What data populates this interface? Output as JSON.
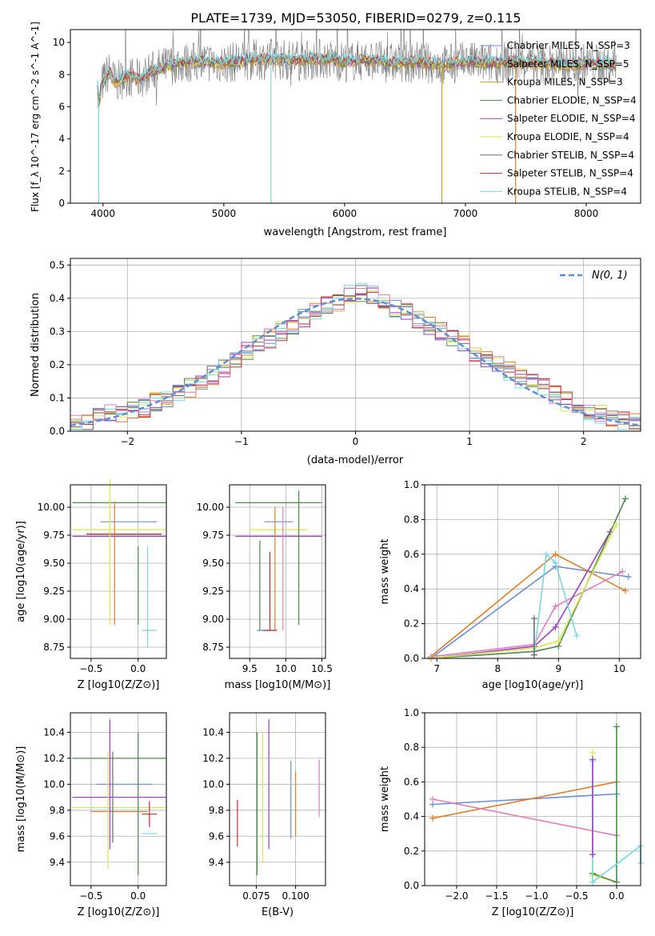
{
  "title": "PLATE=1739, MJD=53050, FIBERID=0279, z=0.115",
  "colors": {
    "CM": "#6b8ed6",
    "SM": "#e07d27",
    "KM": "#c9a31a",
    "CE": "#4d8a4d",
    "SE": "#9b3fc9",
    "KE": "#d9e64d",
    "CS": "#6e6e6e",
    "SS": "#c62b2b",
    "KS": "#7ad7e0",
    "pink": "#e07fb7",
    "teal": "#2a9b8c"
  },
  "spectrum": {
    "xlabel": "wavelength [Angstrom, rest frame]",
    "ylabel": "Flux [f_λ 10^-17 erg cm^-2 s^-1 A^-1]",
    "xticks": [
      "4000",
      "5000",
      "6000",
      "7000",
      "8000"
    ],
    "yticks": [
      "0",
      "2",
      "4",
      "6",
      "8",
      "10"
    ],
    "legend": [
      "Chabrier MILES, N_SSP=3",
      "Salpeter MILES, N_SSP=5",
      "Kroupa MILES, N_SSP=3",
      "Chabrier ELODIE, N_SSP=4",
      "Salpeter ELODIE, N_SSP=4",
      "Kroupa ELODIE, N_SSP=4",
      "Chabrier STELIB, N_SSP=4",
      "Salpeter STELIB, N_SSP=4",
      "Kroupa STELIB, N_SSP=4"
    ]
  },
  "residuals": {
    "xlabel": "(data-model)/error",
    "ylabel": "Normed distribution",
    "legend": "N(0, 1)",
    "xticks": [
      "−2",
      "−1",
      "0",
      "1",
      "2"
    ],
    "yticks": [
      "0.0",
      "0.1",
      "0.2",
      "0.3",
      "0.4",
      "0.5"
    ]
  },
  "panels": {
    "z_age": {
      "xlabel": "Z [log10(Z/Z⊙)]",
      "ylabel": "age  [log10(age/yr)]",
      "xticks": [
        "−0.5",
        "0.0"
      ],
      "yticks": [
        "8.75",
        "9.00",
        "9.25",
        "9.50",
        "9.75",
        "10.00"
      ]
    },
    "mass_age": {
      "xlabel": "mass [log10(M/M⊙)]",
      "xticks": [
        "9.5",
        "10.0",
        "10.5"
      ],
      "yticks": [
        "8.75",
        "9.00",
        "9.25",
        "9.50",
        "9.75",
        "10.00"
      ]
    },
    "age_weight": {
      "xlabel": "age  [log10(age/yr)]",
      "ylabel": "mass weight",
      "xticks": [
        "7",
        "8",
        "9",
        "10"
      ],
      "yticks": [
        "0.0",
        "0.2",
        "0.4",
        "0.6",
        "0.8",
        "1.0"
      ]
    },
    "z_mass": {
      "xlabel": "Z [log10(Z/Z⊙)]",
      "ylabel": "mass [log10(M/M⊙)]",
      "xticks": [
        "−0.5",
        "0.0"
      ],
      "yticks": [
        "9.4",
        "9.6",
        "9.8",
        "10.0",
        "10.2",
        "10.4"
      ]
    },
    "ebv_mass": {
      "xlabel": "E(B-V)",
      "xticks": [
        "0.075",
        "0.100"
      ],
      "yticks": [
        "9.4",
        "9.6",
        "9.8",
        "10.0",
        "10.2",
        "10.4"
      ]
    },
    "z_weight": {
      "xlabel": "Z [log10(Z/Z⊙)]",
      "ylabel": "mass weight",
      "xticks": [
        "−2.0",
        "−1.5",
        "−1.0",
        "−0.5",
        "0.0"
      ],
      "yticks": [
        "0.0",
        "0.2",
        "0.4",
        "0.6",
        "0.8",
        "1.0"
      ]
    }
  },
  "chart_data": [
    {
      "type": "line",
      "title": "PLATE=1739, MJD=53050, FIBERID=0279, z=0.115",
      "xlabel": "wavelength [Angstrom, rest frame]",
      "ylabel": "Flux [f_λ 10^-17 erg cm^-2 s^-1 A^-1]",
      "xlim": [
        3730,
        8450
      ],
      "ylim": [
        0,
        10.8
      ],
      "continuum_x": [
        3950,
        3970,
        3990,
        4050,
        4100,
        4200,
        4300,
        4400,
        4600,
        4800,
        5000,
        5200,
        5400,
        5600,
        5800,
        6000,
        6200,
        6400,
        6600,
        6800,
        7000,
        7200,
        7400,
        7600,
        7800,
        8000,
        8250
      ],
      "continuum_y": [
        7.6,
        6.0,
        7.4,
        8.2,
        7.5,
        7.9,
        7.7,
        8.2,
        8.7,
        8.8,
        8.7,
        8.9,
        9.0,
        8.9,
        9.0,
        8.8,
        8.9,
        8.7,
        8.8,
        8.6,
        8.8,
        8.7,
        8.8,
        8.7,
        8.6,
        8.7,
        8.6
      ],
      "series": [
        {
          "name": "Chabrier MILES, N_SSP=3"
        },
        {
          "name": "Salpeter MILES, N_SSP=5"
        },
        {
          "name": "Kroupa MILES, N_SSP=3"
        },
        {
          "name": "Chabrier ELODIE, N_SSP=4"
        },
        {
          "name": "Salpeter ELODIE, N_SSP=4"
        },
        {
          "name": "Kroupa ELODIE, N_SSP=4"
        },
        {
          "name": "Chabrier STELIB, N_SSP=4"
        },
        {
          "name": "Salpeter STELIB, N_SSP=4"
        },
        {
          "name": "Kroupa STELIB, N_SSP=4"
        }
      ]
    },
    {
      "type": "line",
      "xlabel": "(data-model)/error",
      "ylabel": "Normed distribution",
      "xlim": [
        -2.5,
        2.5
      ],
      "ylim": [
        0,
        0.52
      ],
      "bin_edges": [
        -2.5,
        -2.4,
        -2.3,
        -2.2,
        -2.1,
        -2.0,
        -1.9,
        -1.8,
        -1.7,
        -1.6,
        -1.5,
        -1.4,
        -1.3,
        -1.2,
        -1.1,
        -1.0,
        -0.9,
        -0.8,
        -0.7,
        -0.6,
        -0.5,
        -0.4,
        -0.3,
        -0.2,
        -0.1,
        0.0,
        0.1,
        0.2,
        0.3,
        0.4,
        0.5,
        0.6,
        0.7,
        0.8,
        0.9,
        1.0,
        1.1,
        1.2,
        1.3,
        1.4,
        1.5,
        1.6,
        1.7,
        1.8,
        1.9,
        2.0,
        2.1,
        2.2,
        2.3,
        2.4,
        2.5
      ],
      "hist": [
        0.02,
        0.03,
        0.04,
        0.05,
        0.05,
        0.06,
        0.07,
        0.09,
        0.1,
        0.11,
        0.13,
        0.15,
        0.17,
        0.19,
        0.21,
        0.24,
        0.26,
        0.28,
        0.3,
        0.32,
        0.34,
        0.36,
        0.38,
        0.39,
        0.41,
        0.42,
        0.41,
        0.39,
        0.37,
        0.36,
        0.34,
        0.32,
        0.3,
        0.28,
        0.26,
        0.24,
        0.22,
        0.2,
        0.18,
        0.16,
        0.15,
        0.13,
        0.11,
        0.09,
        0.08,
        0.06,
        0.05,
        0.04,
        0.03,
        0.03
      ],
      "gaussian": "N(0, 1)"
    },
    {
      "type": "scatter",
      "xlabel": "Z [log10(Z/Z⊙)]",
      "ylabel": "age  [log10(age/yr)]",
      "xlim": [
        -0.72,
        0.3
      ],
      "ylim": [
        8.65,
        10.2
      ],
      "points": [
        {
          "c": "CE",
          "x": -0.2,
          "xe": 0.5,
          "y": 10.04,
          "ye": 0
        },
        {
          "c": "CM",
          "x": -0.1,
          "xe": 0.3,
          "y": 9.87,
          "ye": 0
        },
        {
          "c": "KE",
          "x": -0.2,
          "xe": 0.5,
          "y": 9.8,
          "ye": 0
        },
        {
          "c": "SS",
          "x": -0.15,
          "xe": 0.4,
          "y": 9.76,
          "ye": 0
        },
        {
          "c": "SE",
          "x": -0.2,
          "xe": 0.5,
          "y": 9.74,
          "ye": 0
        },
        {
          "c": "KE",
          "x": -0.3,
          "xe": 0,
          "y": 9.6,
          "ye": 0.65
        },
        {
          "c": "SM",
          "x": -0.25,
          "xe": 0,
          "y": 9.5,
          "ye": 0.55
        },
        {
          "c": "CE",
          "x": 0.0,
          "xe": 0,
          "y": 9.3,
          "ye": 0.35
        },
        {
          "c": "KS",
          "x": 0.1,
          "xe": 0,
          "y": 9.2,
          "ye": 0.45
        },
        {
          "c": "KS",
          "x": 0.12,
          "xe": 0.08,
          "y": 8.9,
          "ye": 0
        }
      ]
    },
    {
      "type": "scatter",
      "xlabel": "mass [log10(M/M⊙)]",
      "xlim": [
        9.22,
        10.55
      ],
      "ylim": [
        8.65,
        10.2
      ],
      "points": [
        {
          "c": "CE",
          "x": 9.9,
          "xe": 0.6,
          "y": 10.04,
          "ye": 0
        },
        {
          "c": "CM",
          "x": 9.9,
          "xe": 0.2,
          "y": 9.87,
          "ye": 0
        },
        {
          "c": "KE",
          "x": 9.9,
          "xe": 0.4,
          "y": 9.8,
          "ye": 0
        },
        {
          "c": "SE",
          "x": 9.9,
          "xe": 0.6,
          "y": 9.74,
          "ye": 0
        },
        {
          "c": "CE",
          "x": 9.64,
          "xe": 0,
          "y": 9.3,
          "ye": 0.4
        },
        {
          "c": "SS",
          "x": 9.78,
          "xe": 0,
          "y": 9.25,
          "ye": 0.35
        },
        {
          "c": "SM",
          "x": 9.85,
          "xe": 0,
          "y": 9.45,
          "ye": 0.55
        },
        {
          "c": "pink",
          "x": 9.96,
          "xe": 0,
          "y": 9.45,
          "ye": 0.55
        },
        {
          "c": "CE",
          "x": 10.18,
          "xe": 0,
          "y": 9.55,
          "ye": 0.6
        },
        {
          "c": "CM",
          "x": 9.72,
          "xe": 0.12,
          "y": 8.9,
          "ye": 0
        },
        {
          "c": "SS",
          "x": 9.78,
          "xe": 0.1,
          "y": 8.9,
          "ye": 0
        }
      ]
    },
    {
      "type": "line",
      "xlabel": "age  [log10(age/yr)]",
      "ylabel": "mass weight",
      "xlim": [
        6.8,
        10.35
      ],
      "ylim": [
        0,
        1.0
      ],
      "series": [
        {
          "c": "CM",
          "x": [
            6.9,
            8.95,
            10.15
          ],
          "y": [
            0.0,
            0.53,
            0.47
          ]
        },
        {
          "c": "SM",
          "x": [
            6.9,
            8.95,
            10.1
          ],
          "y": [
            0.01,
            0.6,
            0.39
          ]
        },
        {
          "c": "pink",
          "x": [
            6.9,
            8.6,
            8.95,
            10.05
          ],
          "y": [
            0.01,
            0.08,
            0.3,
            0.5
          ]
        },
        {
          "c": "SE",
          "x": [
            6.9,
            8.6,
            8.95,
            9.85
          ],
          "y": [
            0.0,
            0.07,
            0.18,
            0.73
          ]
        },
        {
          "c": "CE",
          "x": [
            6.9,
            8.6,
            9.0,
            10.1
          ],
          "y": [
            0.0,
            0.04,
            0.07,
            0.92
          ]
        },
        {
          "c": "KE",
          "x": [
            6.9,
            8.6,
            9.0,
            9.95
          ],
          "y": [
            0.0,
            0.06,
            0.1,
            0.77
          ]
        },
        {
          "c": "KS",
          "x": [
            8.6,
            8.8,
            8.95,
            9.3
          ],
          "y": [
            0.02,
            0.6,
            0.55,
            0.13
          ]
        },
        {
          "c": "CS",
          "x": [
            8.6,
            8.6
          ],
          "y": [
            0.02,
            0.23
          ]
        }
      ]
    },
    {
      "type": "scatter",
      "xlabel": "Z [log10(Z/Z⊙)]",
      "ylabel": "mass [log10(M/M⊙)]",
      "xlim": [
        -0.72,
        0.3
      ],
      "ylim": [
        9.22,
        10.55
      ],
      "points": [
        {
          "c": "CE",
          "x": -0.2,
          "xe": 0.5,
          "y": 10.2,
          "ye": 0
        },
        {
          "c": "CM",
          "x": -0.15,
          "xe": 0.3,
          "y": 10.0,
          "ye": 0
        },
        {
          "c": "SE",
          "x": -0.2,
          "xe": 0.5,
          "y": 9.9,
          "ye": 0
        },
        {
          "c": "KE",
          "x": -0.2,
          "xe": 0.5,
          "y": 9.82,
          "ye": 0
        },
        {
          "c": "SM",
          "x": -0.2,
          "xe": 0.3,
          "y": 9.79,
          "ye": 0
        },
        {
          "c": "SE",
          "x": -0.3,
          "xe": 0,
          "y": 10.0,
          "ye": 0.5
        },
        {
          "c": "KE",
          "x": -0.32,
          "xe": 0,
          "y": 9.8,
          "ye": 0.45
        },
        {
          "c": "CS",
          "x": -0.27,
          "xe": 0,
          "y": 9.9,
          "ye": 0.35
        },
        {
          "c": "CE",
          "x": 0.0,
          "xe": 0,
          "y": 9.85,
          "ye": 0.55
        },
        {
          "c": "SS",
          "x": 0.12,
          "xe": 0.08,
          "y": 9.77,
          "ye": 0.1
        },
        {
          "c": "KS",
          "x": 0.12,
          "xe": 0.08,
          "y": 9.62,
          "ye": 0
        }
      ]
    },
    {
      "type": "scatter",
      "xlabel": "E(B-V)",
      "xlim": [
        0.058,
        0.119
      ],
      "ylim": [
        9.22,
        10.55
      ],
      "points": [
        {
          "c": "SS",
          "x": 0.063,
          "y": 9.7,
          "ye": 0.18
        },
        {
          "c": "CE",
          "x": 0.0755,
          "y": 9.85,
          "ye": 0.55
        },
        {
          "c": "KE",
          "x": 0.079,
          "y": 9.9,
          "ye": 0.5
        },
        {
          "c": "SE",
          "x": 0.083,
          "y": 10.0,
          "ye": 0.5
        },
        {
          "c": "CM",
          "x": 0.097,
          "y": 9.88,
          "ye": 0.3
        },
        {
          "c": "SM",
          "x": 0.1,
          "y": 9.85,
          "ye": 0.25
        },
        {
          "c": "pink",
          "x": 0.115,
          "y": 9.97,
          "ye": 0.22
        }
      ]
    },
    {
      "type": "line",
      "xlabel": "Z [log10(Z/Z⊙)]",
      "ylabel": "mass weight",
      "xlim": [
        -2.4,
        0.3
      ],
      "ylim": [
        0,
        1.0
      ],
      "series": [
        {
          "c": "CM",
          "x": [
            -2.3,
            0.0
          ],
          "y": [
            0.47,
            0.53
          ]
        },
        {
          "c": "SM",
          "x": [
            -2.3,
            0.0
          ],
          "y": [
            0.39,
            0.6
          ]
        },
        {
          "c": "pink",
          "x": [
            -2.3,
            0.0
          ],
          "y": [
            0.5,
            0.29
          ]
        },
        {
          "c": "KE",
          "x": [
            -0.3,
            -0.3,
            0.0
          ],
          "y": [
            0.77,
            0.06,
            0.02
          ]
        },
        {
          "c": "CE",
          "x": [
            0.0,
            0.0,
            -0.3
          ],
          "y": [
            0.92,
            0.02,
            0.07
          ]
        },
        {
          "c": "KS",
          "x": [
            -0.3,
            -0.3,
            0.3,
            0.3
          ],
          "y": [
            0.72,
            0.02,
            0.23,
            0.13
          ]
        },
        {
          "c": "SE",
          "x": [
            -0.3,
            -0.3
          ],
          "y": [
            0.73,
            0.18
          ]
        }
      ]
    }
  ]
}
